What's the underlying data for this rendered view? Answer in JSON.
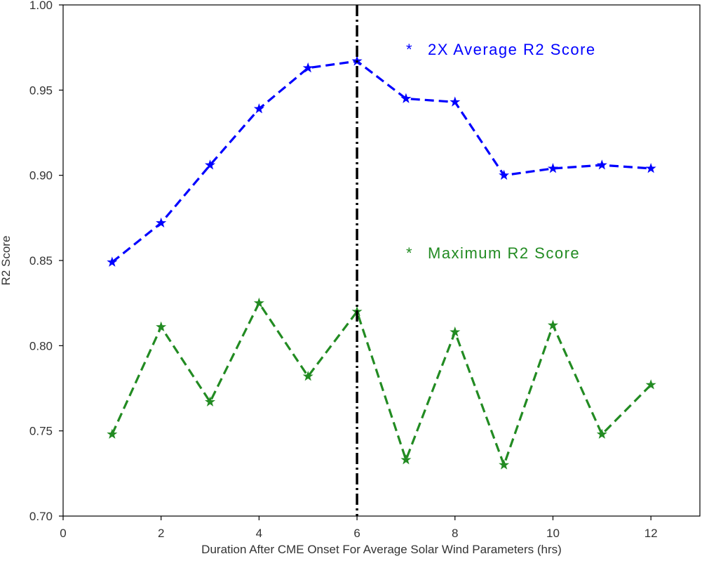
{
  "chart_data": {
    "type": "line",
    "title": "",
    "xlabel": "Duration After CME Onset For Average Solar Wind Parameters (hrs)",
    "ylabel": "R2 Score",
    "xlim": [
      0,
      13
    ],
    "ylim": [
      0.7,
      1.0
    ],
    "xticks": [
      0,
      2,
      4,
      6,
      8,
      10,
      12
    ],
    "yticks": [
      0.7,
      0.75,
      0.8,
      0.85,
      0.9,
      0.95,
      1.0
    ],
    "xtick_labels": [
      "0",
      "2",
      "4",
      "6",
      "8",
      "10",
      "12"
    ],
    "ytick_labels": [
      "0.70",
      "0.75",
      "0.80",
      "0.85",
      "0.90",
      "0.95",
      "1.00"
    ],
    "grid": false,
    "legend_placement": "upper-right",
    "x": [
      1,
      2,
      3,
      4,
      5,
      6,
      7,
      8,
      9,
      10,
      11,
      12
    ],
    "series": [
      {
        "name": "2X Average R2 Score",
        "color": "#0000ff",
        "marker": "star",
        "linestyle": "dashed",
        "values": [
          0.849,
          0.872,
          0.906,
          0.939,
          0.963,
          0.967,
          0.945,
          0.943,
          0.9,
          0.904,
          0.906,
          0.904
        ]
      },
      {
        "name": "Maximum R2 Score",
        "color": "#228b22",
        "marker": "star",
        "linestyle": "dashed",
        "values": [
          0.748,
          0.811,
          0.767,
          0.825,
          0.782,
          0.82,
          0.733,
          0.808,
          0.73,
          0.812,
          0.748,
          0.777
        ]
      }
    ],
    "vline": {
      "x": 6,
      "color": "#000000",
      "linestyle": "dashdot"
    },
    "legend": {
      "marker_glyph": "*",
      "entries": [
        "2X Average R2 Score",
        "Maximum R2 Score"
      ]
    }
  }
}
